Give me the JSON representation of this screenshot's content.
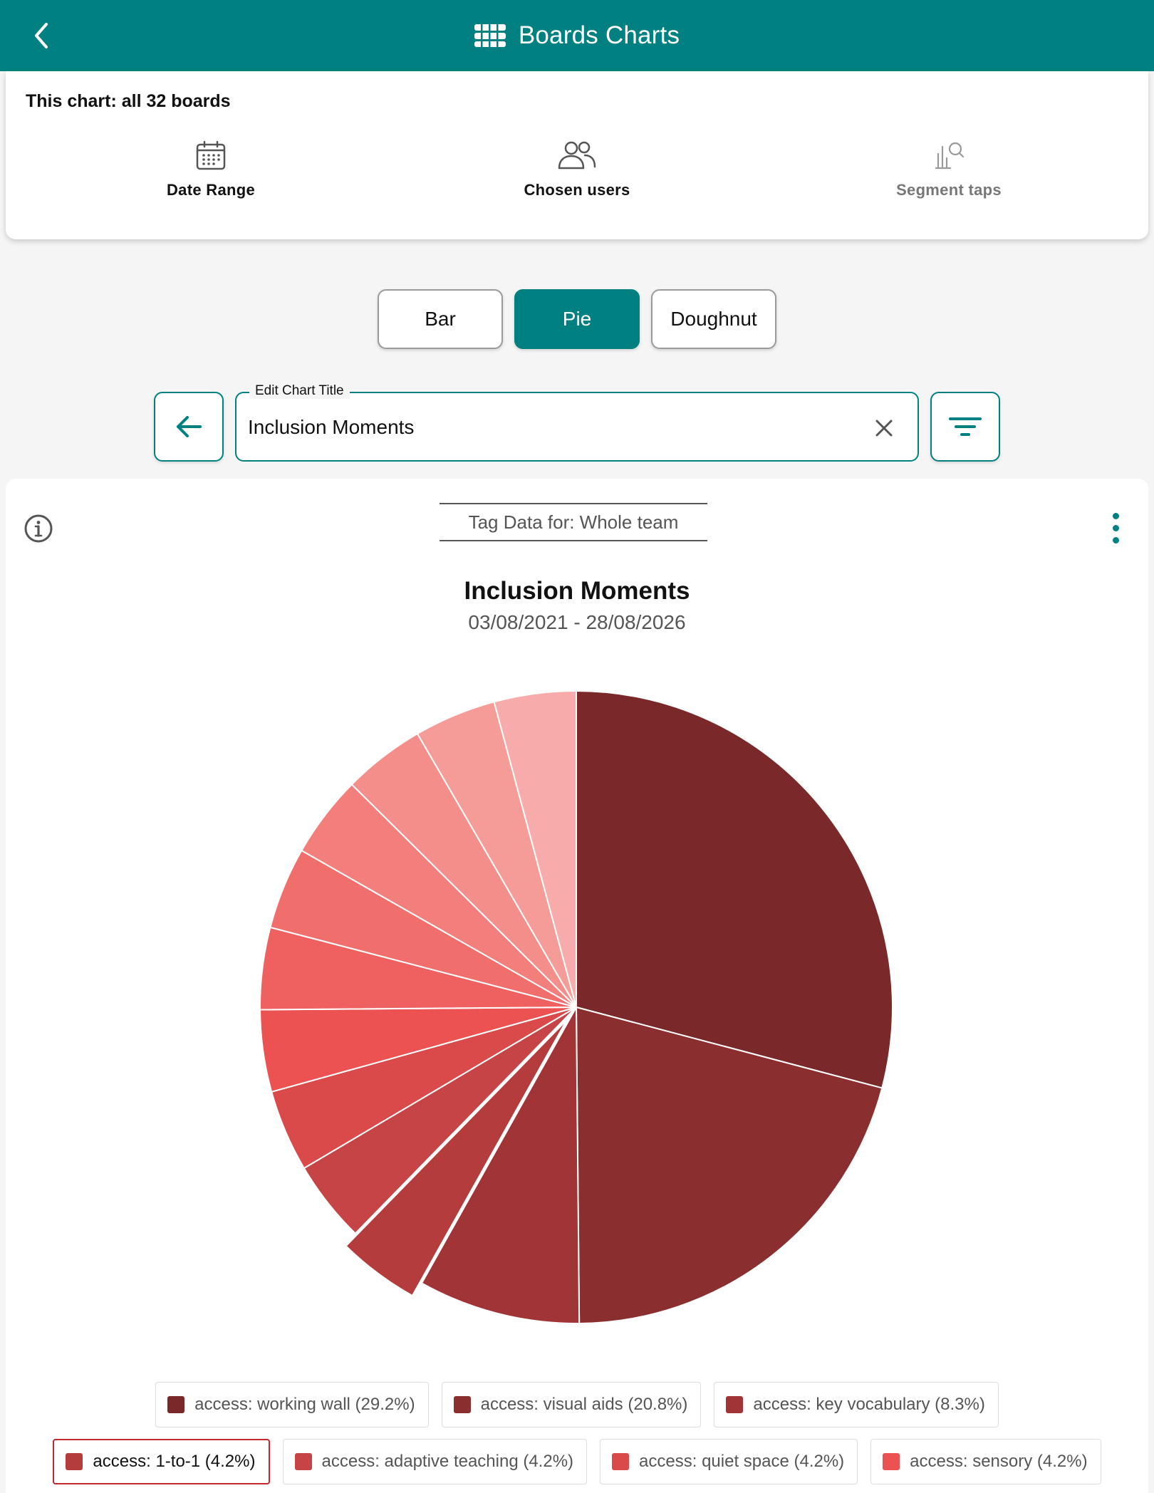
{
  "header": {
    "title": "Boards Charts",
    "back_icon": "chevron-left-icon",
    "title_icon": "boards-icon",
    "bg_color": "#008080"
  },
  "filters": {
    "summary": "This chart: all 32 boards",
    "items": [
      {
        "label": "Date Range",
        "icon": "calendar-icon",
        "enabled": true
      },
      {
        "label": "Chosen users",
        "icon": "users-icon",
        "enabled": true
      },
      {
        "label": "Segment taps",
        "icon": "chart-search-icon",
        "enabled": false
      }
    ]
  },
  "chart_types": {
    "options": [
      "Bar",
      "Pie",
      "Doughnut"
    ],
    "selected": "Pie"
  },
  "title_editor": {
    "legend": "Edit Chart Title",
    "value": "Inclusion Moments",
    "back_icon": "arrow-left-icon",
    "clear_icon": "close-icon",
    "filter_icon": "filter-icon"
  },
  "chart_card": {
    "tag_select": "Tag Data for: Whole team",
    "info_icon": "info-icon",
    "menu_icon": "more-vertical-icon"
  },
  "chart_data": {
    "type": "pie",
    "title": "Inclusion Moments",
    "subtitle": "03/08/2021 - 28/08/2026",
    "legend_position": "bottom",
    "exploded_slice": "access: 1-to-1",
    "slices": [
      {
        "label": "access: working wall",
        "percent": "29.2%",
        "value": 29.2,
        "color": "#7a282a"
      },
      {
        "label": "access: visual aids",
        "percent": "20.8%",
        "value": 20.8,
        "color": "#8b2e30"
      },
      {
        "label": "access: key vocabulary",
        "percent": "8.3%",
        "value": 8.3,
        "color": "#a03436"
      },
      {
        "label": "access: 1-to-1",
        "percent": "4.2%",
        "value": 4.2,
        "color": "#b43c3c"
      },
      {
        "label": "access: adaptive teaching",
        "percent": "4.2%",
        "value": 4.2,
        "color": "#c64445"
      },
      {
        "label": "access: quiet space",
        "percent": "4.2%",
        "value": 4.2,
        "color": "#da4a4a"
      },
      {
        "label": "access: sensory",
        "percent": "4.2%",
        "value": 4.2,
        "color": "#ec5252"
      },
      {
        "label": "",
        "value": 4.2,
        "color": "#ef6060"
      },
      {
        "label": "",
        "value": 4.2,
        "color": "#f06e6c"
      },
      {
        "label": "",
        "value": 4.2,
        "color": "#f37f7c"
      },
      {
        "label": "",
        "value": 4.2,
        "color": "#f48e8a"
      },
      {
        "label": "",
        "value": 4.2,
        "color": "#f59c98"
      },
      {
        "label": "",
        "value": 4.2,
        "color": "#f7abab"
      }
    ]
  }
}
